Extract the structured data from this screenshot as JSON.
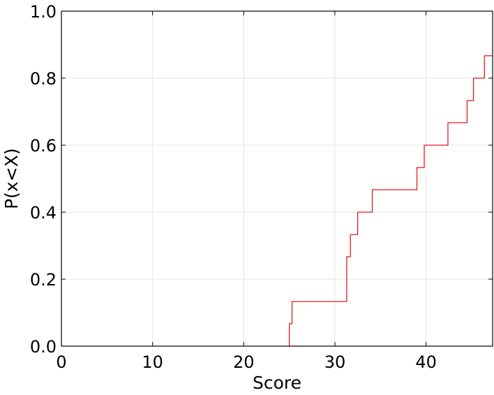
{
  "chart_data": {
    "type": "line",
    "step": "post",
    "title": "",
    "xlabel": "Score",
    "ylabel": "P(x<X)",
    "xlim": [
      0,
      47.3
    ],
    "ylim": [
      0,
      1.0
    ],
    "x_ticks": [
      0,
      10,
      20,
      30,
      40
    ],
    "x_tick_labels": [
      "0",
      "10",
      "20",
      "30",
      "40"
    ],
    "y_ticks": [
      0.0,
      0.2,
      0.4,
      0.6,
      0.8,
      1.0
    ],
    "y_tick_labels": [
      "0.0",
      "0.2",
      "0.4",
      "0.6",
      "0.8",
      "1.0"
    ],
    "grid": true,
    "series": [
      {
        "color": "#e41a1c",
        "x": [
          25.0,
          25.3,
          31.3,
          31.7,
          32.5,
          34.1,
          39.0,
          39.8,
          42.4,
          44.5,
          45.2,
          46.4,
          47.3
        ],
        "y": [
          0.067,
          0.133,
          0.267,
          0.333,
          0.4,
          0.467,
          0.533,
          0.6,
          0.667,
          0.733,
          0.8,
          0.867,
          0.867
        ]
      }
    ]
  }
}
